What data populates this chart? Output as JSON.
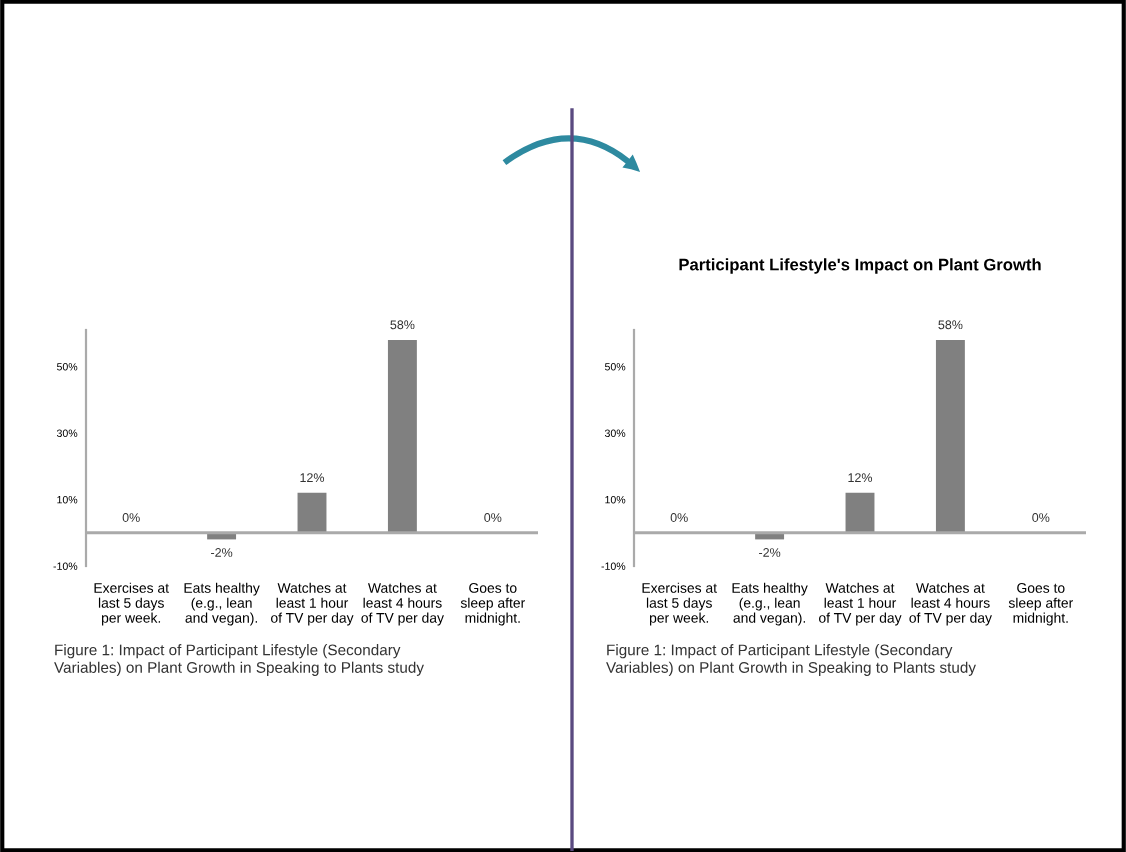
{
  "chart_data": [
    {
      "type": "bar",
      "categories": [
        "Exercises at\nlast 5 days\nper week.",
        "Eats healthy\n(e.g., lean\nand vegan).",
        "Watches at\nleast 1 hour\nof TV per day",
        "Watches at\nleast 4 hours\nof TV per day",
        "Goes to\nsleep after\nmidnight."
      ],
      "values": [
        0,
        -2,
        12,
        58,
        0
      ],
      "color": "#808080",
      "value_labels": [
        "0%",
        "-2%",
        "12%",
        "58%",
        "0%"
      ],
      "ylim": [
        -10,
        61
      ],
      "yticks": [
        {
          "value": -10,
          "label": "-10%"
        },
        {
          "value": 10,
          "label": "10%"
        },
        {
          "value": 30,
          "label": "30%"
        },
        {
          "value": 50,
          "label": "50%"
        }
      ],
      "grid": false,
      "annotations": [
        "Figure 1: Impact of Participant Lifestyle (Secondary\nVariables) on Plant Growth in Speaking to Plants study"
      ]
    },
    {
      "type": "bar",
      "title": "Participant Lifestyle's Impact on Plant Growth",
      "categories": [
        "Exercises at\nlast 5 days\nper week.",
        "Eats healthy\n(e.g., lean\nand vegan).",
        "Watches at\nleast 1 hour\nof TV per day",
        "Watches at\nleast 4 hours\nof TV per day",
        "Goes to\nsleep after\nmidnight."
      ],
      "values": [
        0,
        -2,
        12,
        58,
        0
      ],
      "color": "#808080",
      "value_labels": [
        "0%",
        "-2%",
        "12%",
        "58%",
        "0%"
      ],
      "ylim": [
        -10,
        61
      ],
      "yticks": [
        {
          "value": -10,
          "label": "-10%"
        },
        {
          "value": 10,
          "label": "10%"
        },
        {
          "value": 30,
          "label": "30%"
        },
        {
          "value": 50,
          "label": "50%"
        }
      ],
      "grid": false,
      "annotations": [
        "Figure 1: Impact of Participant Lifestyle (Secondary\nVariables) on Plant Growth in Speaking to Plants study"
      ]
    }
  ]
}
